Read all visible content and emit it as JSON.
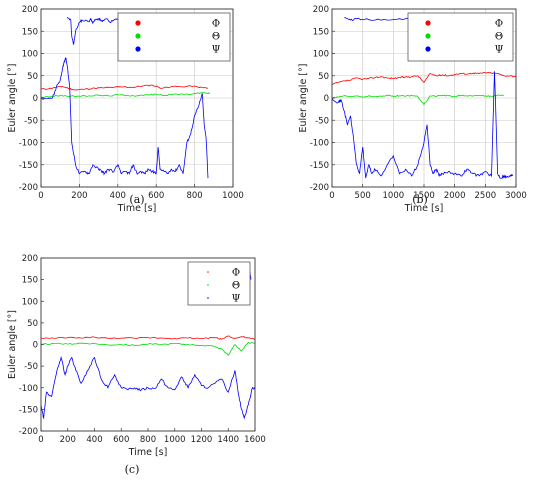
{
  "chart_data": [
    {
      "type": "line",
      "panel_label": "(a)",
      "xlabel": "Time [s]",
      "ylabel": "Euler angle [°]",
      "xlim": [
        0,
        1000
      ],
      "ylim": [
        -200,
        200
      ],
      "xticks": [
        "0",
        "200",
        "400",
        "600",
        "800",
        "1000"
      ],
      "yticks": [
        "200",
        "150",
        "100",
        "50",
        "0",
        "-50",
        "-100",
        "-150",
        "-200"
      ],
      "grid": true,
      "legend_position": "top-right",
      "legend_marker": "dot",
      "series": [
        {
          "name": "Φ",
          "color": "#ff0000",
          "x": [
            0,
            40,
            80,
            110,
            140,
            180,
            230,
            280,
            330,
            380,
            430,
            480,
            530,
            580,
            630,
            680,
            730,
            780,
            830,
            870
          ],
          "y": [
            20,
            21,
            24,
            26,
            22,
            18,
            20,
            22,
            23,
            24,
            25,
            24,
            27,
            29,
            22,
            26,
            25,
            27,
            24,
            22
          ]
        },
        {
          "name": "Θ",
          "color": "#00dd00",
          "x": [
            0,
            50,
            100,
            150,
            200,
            250,
            300,
            350,
            400,
            450,
            500,
            550,
            600,
            650,
            700,
            750,
            800,
            850,
            880
          ],
          "y": [
            2,
            3,
            6,
            4,
            4,
            5,
            6,
            5,
            7,
            6,
            5,
            7,
            8,
            6,
            9,
            8,
            10,
            12,
            10
          ]
        },
        {
          "name": "Ψ",
          "color": "#0000ff",
          "x": [
            0,
            60,
            85,
            100,
            110,
            120,
            130,
            140,
            150,
            160,
            180,
            200,
            230,
            250,
            270,
            300,
            320,
            330,
            350,
            380,
            400,
            420,
            440,
            460,
            480,
            500,
            520,
            540,
            560,
            580,
            600,
            610,
            620,
            640,
            660,
            680,
            700,
            720,
            740,
            760,
            780,
            800,
            820,
            840,
            850,
            860,
            870
          ],
          "y": [
            0,
            0,
            30,
            40,
            60,
            80,
            90,
            60,
            20,
            -100,
            -150,
            -170,
            -165,
            -170,
            -150,
            -160,
            -165,
            -170,
            -160,
            -165,
            -150,
            -170,
            -165,
            -170,
            -150,
            -170,
            -165,
            -170,
            -160,
            -165,
            -170,
            -110,
            -160,
            -165,
            -170,
            -160,
            -165,
            -150,
            -170,
            -100,
            -80,
            -40,
            -20,
            10,
            -60,
            -90,
            -180
          ]
        }
      ],
      "jumps": [
        {
          "x": [
            135,
            155,
            160,
            170,
            180,
            200,
            215,
            250,
            260,
            270,
            280,
            300,
            310,
            320,
            340,
            360,
            380,
            400,
            430,
            460,
            480,
            500,
            520,
            540,
            560,
            580,
            600,
            610,
            620,
            630,
            640,
            660,
            680,
            700
          ],
          "y": [
            180,
            175,
            140,
            120,
            150,
            170,
            175,
            172,
            178,
            168,
            175,
            178,
            175,
            172,
            178,
            170,
            175,
            178,
            176,
            174,
            170,
            178,
            176,
            175,
            178,
            170,
            178,
            140,
            160,
            175,
            178,
            176,
            174,
            178
          ]
        }
      ]
    },
    {
      "type": "line",
      "panel_label": "(b)",
      "xlabel": "Time [s]",
      "ylabel": "Euler angle [°]",
      "xlim": [
        0,
        3000
      ],
      "ylim": [
        -200,
        200
      ],
      "xticks": [
        "0",
        "500",
        "1000",
        "1500",
        "2000",
        "2500",
        "3000"
      ],
      "yticks": [
        "200",
        "150",
        "100",
        "50",
        "0",
        "-50",
        "-100",
        "-150",
        "-200"
      ],
      "grid": true,
      "legend_position": "top-right",
      "legend_marker": "dot",
      "series": [
        {
          "name": "Φ",
          "color": "#ff0000",
          "x": [
            0,
            100,
            200,
            300,
            400,
            500,
            600,
            700,
            800,
            900,
            1000,
            1100,
            1200,
            1300,
            1400,
            1500,
            1600,
            1700,
            1800,
            1900,
            2000,
            2100,
            2200,
            2300,
            2400,
            2500,
            2600,
            2700,
            2800,
            2900,
            3000
          ],
          "y": [
            30,
            35,
            38,
            40,
            45,
            42,
            44,
            46,
            48,
            45,
            44,
            46,
            47,
            48,
            50,
            35,
            55,
            50,
            52,
            50,
            53,
            55,
            54,
            56,
            55,
            57,
            56,
            55,
            50,
            50,
            48
          ]
        },
        {
          "name": "Θ",
          "color": "#00dd00",
          "x": [
            0,
            100,
            200,
            300,
            400,
            500,
            600,
            700,
            800,
            900,
            1000,
            1100,
            1200,
            1300,
            1400,
            1500,
            1600,
            1700,
            1800,
            1900,
            2000,
            2100,
            2200,
            2300,
            2400,
            2500,
            2600,
            2700,
            2800
          ],
          "y": [
            0,
            2,
            5,
            3,
            4,
            2,
            5,
            3,
            4,
            6,
            3,
            5,
            4,
            6,
            3,
            -15,
            5,
            4,
            6,
            5,
            3,
            6,
            5,
            4,
            6,
            5,
            4,
            6,
            5
          ]
        },
        {
          "name": "Ψ",
          "color": "#0000ff",
          "x": [
            0,
            100,
            150,
            200,
            250,
            300,
            350,
            400,
            450,
            500,
            550,
            600,
            650,
            700,
            800,
            900,
            1000,
            1100,
            1200,
            1300,
            1400,
            1500,
            1550,
            1600,
            1650,
            1700,
            1750,
            1800,
            1900,
            2000,
            2100,
            2200,
            2300,
            2400,
            2500,
            2600,
            2650,
            2700,
            2750,
            2800,
            2850,
            2900,
            2950
          ],
          "y": [
            0,
            -10,
            -5,
            -30,
            -60,
            -40,
            -90,
            -150,
            -170,
            -110,
            -180,
            -150,
            -170,
            -160,
            -175,
            -150,
            -130,
            -170,
            -160,
            -175,
            -150,
            -100,
            -60,
            -150,
            -170,
            -160,
            -175,
            -170,
            -165,
            -170,
            -175,
            -160,
            -170,
            -175,
            -165,
            -175,
            60,
            -170,
            -180,
            -175,
            -178,
            -176,
            -172
          ]
        }
      ],
      "jumps": [
        {
          "x": [
            200,
            300,
            400,
            600,
            900,
            1200,
            1300,
            1400,
            1500,
            1550,
            1600,
            1650,
            1700,
            1750,
            1800,
            1850
          ],
          "y": [
            180,
            175,
            178,
            176,
            175,
            178,
            180,
            170,
            160,
            150,
            175,
            170,
            180,
            178,
            170,
            140
          ]
        }
      ]
    },
    {
      "type": "line",
      "panel_label": "(c)",
      "xlabel": "Time [s]",
      "ylabel": "Euler angle [°]",
      "xlim": [
        0,
        1600
      ],
      "ylim": [
        -200,
        200
      ],
      "xticks": [
        "0",
        "200",
        "400",
        "600",
        "800",
        "1000",
        "1200",
        "1400",
        "1600"
      ],
      "yticks": [
        "200",
        "150",
        "100",
        "50",
        "0",
        "-50",
        "-100",
        "-150",
        "-200"
      ],
      "grid": false,
      "legend_position": "top-right",
      "legend_marker": "tiny",
      "series": [
        {
          "name": "Φ",
          "color": "#ff0000",
          "x": [
            0,
            100,
            200,
            300,
            400,
            500,
            600,
            700,
            800,
            900,
            1000,
            1100,
            1200,
            1300,
            1350,
            1400,
            1450,
            1500,
            1550,
            1600
          ],
          "y": [
            15,
            14,
            16,
            15,
            17,
            14,
            15,
            14,
            16,
            15,
            14,
            15,
            14,
            16,
            12,
            20,
            14,
            18,
            15,
            12
          ]
        },
        {
          "name": "Θ",
          "color": "#00dd00",
          "x": [
            0,
            100,
            200,
            300,
            400,
            500,
            600,
            700,
            800,
            900,
            1000,
            1100,
            1200,
            1300,
            1350,
            1400,
            1450,
            1500,
            1550,
            1600
          ],
          "y": [
            0,
            2,
            1,
            3,
            2,
            -1,
            0,
            -2,
            1,
            0,
            2,
            0,
            -2,
            -5,
            -10,
            -25,
            0,
            -15,
            5,
            2
          ]
        },
        {
          "name": "Ψ",
          "color": "#0000ff",
          "x": [
            0,
            20,
            40,
            80,
            120,
            150,
            180,
            200,
            230,
            260,
            300,
            350,
            400,
            450,
            500,
            550,
            600,
            650,
            700,
            750,
            800,
            850,
            900,
            950,
            1000,
            1050,
            1100,
            1150,
            1200,
            1250,
            1300,
            1350,
            1400,
            1450,
            1480,
            1500,
            1520,
            1550,
            1580,
            1600
          ],
          "y": [
            -140,
            -170,
            -110,
            -120,
            -60,
            -30,
            -70,
            -50,
            -30,
            -60,
            -90,
            -60,
            -30,
            -80,
            -100,
            -70,
            -100,
            -105,
            -100,
            -105,
            -100,
            -102,
            -80,
            -100,
            -105,
            -75,
            -100,
            -70,
            -95,
            -100,
            -90,
            -80,
            -110,
            -60,
            -120,
            -150,
            -170,
            -140,
            -100,
            -100
          ]
        }
      ],
      "jumps": [
        {
          "x": [
            1560,
            1570
          ],
          "y": [
            170,
            150
          ]
        }
      ]
    }
  ]
}
